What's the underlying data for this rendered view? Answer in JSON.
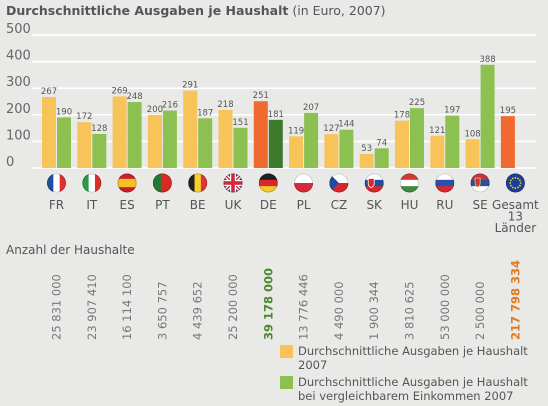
{
  "title": "Durchschnittliche Ausgaben je Haushalt",
  "title_suffix": "(in Euro, 2007)",
  "households_label": "Anzahl der Haushalte",
  "colors": {
    "series1": "#f8c45a",
    "series2": "#8cc151",
    "highlight": "#f06a30",
    "highlight_dark": "#3d7a2d",
    "households_text": "#777777",
    "households_highlight_de": "#4a8a2a",
    "households_highlight_total": "#e07a1c",
    "grid": "#ffffff",
    "axis_text": "#666666"
  },
  "chart_data": {
    "type": "bar",
    "yticks": [
      0,
      100,
      200,
      300,
      400,
      500
    ],
    "ylim": [
      0,
      500
    ],
    "grid": true,
    "legend_position": "bottom-right",
    "categories": [
      "FR",
      "IT",
      "ES",
      "PT",
      "BE",
      "UK",
      "DE",
      "PL",
      "CZ",
      "SK",
      "HU",
      "RU",
      "SE",
      "Gesamt 13 Länder"
    ],
    "category_lines": [
      [
        "FR"
      ],
      [
        "IT"
      ],
      [
        "ES"
      ],
      [
        "PT"
      ],
      [
        "BE"
      ],
      [
        "UK"
      ],
      [
        "DE"
      ],
      [
        "PL"
      ],
      [
        "CZ"
      ],
      [
        "SK"
      ],
      [
        "HU"
      ],
      [
        "RU"
      ],
      [
        "SE"
      ],
      [
        "Gesamt",
        "13",
        "Länder"
      ]
    ],
    "flags": [
      "flag-fr-icon",
      "flag-it-icon",
      "flag-es-icon",
      "flag-pt-icon",
      "flag-be-icon",
      "flag-uk-icon",
      "flag-de-icon",
      "flag-pl-icon",
      "flag-cz-icon",
      "flag-sk-icon",
      "flag-hu-icon",
      "flag-ru-icon",
      "flag-rs-icon",
      "flag-eu-icon"
    ],
    "series": [
      {
        "name": "Durchschnittliche Ausgaben je Haushalt 2007",
        "values": [
          267,
          172,
          269,
          200,
          291,
          218,
          251,
          119,
          127,
          53,
          178,
          121,
          108,
          195
        ]
      },
      {
        "name": "Durchschnittliche Ausgaben je Haushalt bei vergleichbarem Einkommen 2007",
        "values": [
          190,
          128,
          248,
          216,
          187,
          151,
          181,
          207,
          144,
          74,
          225,
          197,
          388,
          null
        ]
      }
    ],
    "households": [
      "25 831 000",
      "23 907 410",
      "16 114 100",
      "3 650 757",
      "4 439 652",
      "25 200 000",
      "39 178 000",
      "13 776 446",
      "4 490 000",
      "1 900 344",
      "3 810 625",
      "53 000 000",
      "2 500 000",
      "217 798 334"
    ]
  }
}
